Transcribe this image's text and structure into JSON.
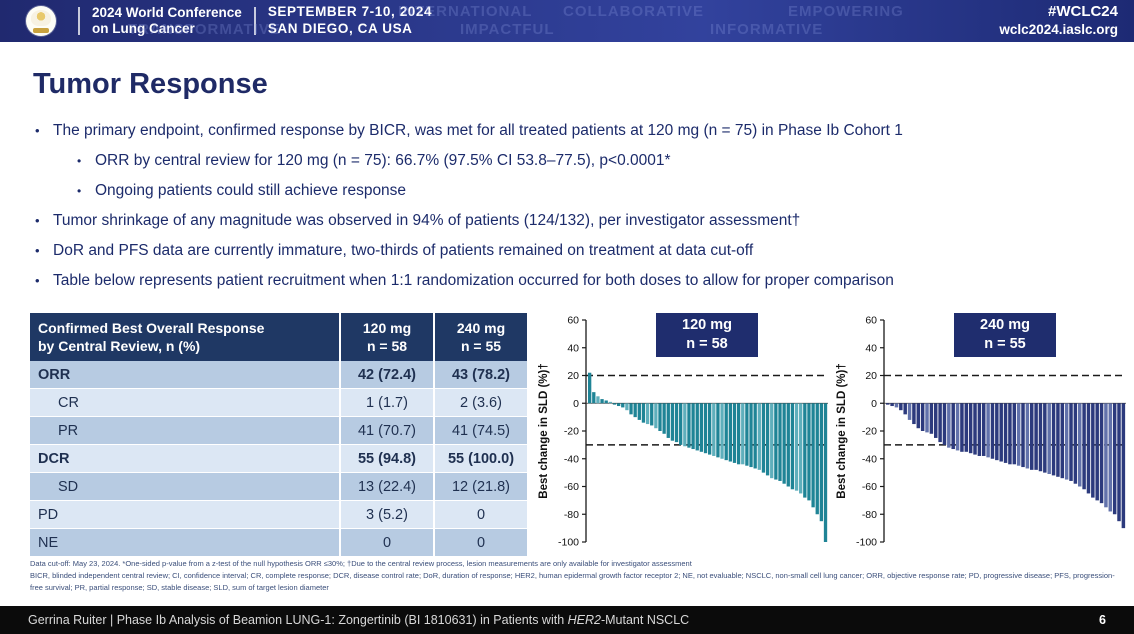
{
  "header": {
    "conference_name_line1": "2024 World Conference",
    "conference_name_line2": "on Lung Cancer",
    "date_line1": "SEPTEMBER 7-10, 2024",
    "date_line2": "SAN DIEGO, CA USA",
    "hashtag": "#WCLC24",
    "website": "wclc2024.iaslc.org",
    "watermarks": [
      "INTERNATIONAL",
      "COLLABORATIVE",
      "EMPOWERING",
      "TRANSFORMATIVE",
      "IMPACTFUL",
      "INFORMATIVE"
    ]
  },
  "title": "Tumor Response",
  "bullets": [
    {
      "level": 0,
      "text": "The primary endpoint, confirmed response by BICR, was met for all treated patients at 120 mg (n = 75) in Phase Ib Cohort 1"
    },
    {
      "level": 1,
      "text": "ORR by central review for 120 mg (n = 75): 66.7% (97.5% CI 53.8–77.5), p<0.0001*"
    },
    {
      "level": 1,
      "text": "Ongoing patients could still achieve response"
    },
    {
      "level": 0,
      "text": "Tumor shrinkage of any magnitude was observed in 94% of patients (124/132), per investigator assessment†"
    },
    {
      "level": 0,
      "text": "DoR and PFS data are currently immature, two-thirds of patients remained on treatment at data cut-off"
    },
    {
      "level": 0,
      "text": "Table below represents patient recruitment when 1:1 randomization occurred for both doses to allow for proper comparison"
    }
  ],
  "table": {
    "header_col1_line1": "Confirmed Best Overall Response",
    "header_col1_line2": "by Central Review, n (%)",
    "header_col2_line1": "120 mg",
    "header_col2_line2": "n = 58",
    "header_col3_line1": "240 mg",
    "header_col3_line2": "n = 55",
    "rows": [
      {
        "label": "ORR",
        "bold": true,
        "indent": false,
        "v120": "42 (72.4)",
        "v240": "43 (78.2)"
      },
      {
        "label": "CR",
        "bold": false,
        "indent": true,
        "v120": "1 (1.7)",
        "v240": "2 (3.6)"
      },
      {
        "label": "PR",
        "bold": false,
        "indent": true,
        "v120": "41 (70.7)",
        "v240": "41 (74.5)"
      },
      {
        "label": "DCR",
        "bold": true,
        "indent": false,
        "v120": "55 (94.8)",
        "v240": "55 (100.0)"
      },
      {
        "label": "SD",
        "bold": false,
        "indent": true,
        "v120": "13 (22.4)",
        "v240": "12 (21.8)"
      },
      {
        "label": "PD",
        "bold": false,
        "indent": false,
        "v120": "3 (5.2)",
        "v240": "0"
      },
      {
        "label": "NE",
        "bold": false,
        "indent": false,
        "v120": "0",
        "v240": "0"
      }
    ]
  },
  "chart_data": [
    {
      "type": "bar",
      "title": "120 mg",
      "subtitle": "n = 58",
      "ylabel": "Best change in SLD (%)†",
      "xlabel": "",
      "ylim": [
        -100,
        60
      ],
      "yticks": [
        60,
        40,
        20,
        0,
        -20,
        -40,
        -60,
        -80,
        -100
      ],
      "reference_lines": [
        20,
        -30
      ],
      "grid": false,
      "bar_color": "#1f8496",
      "bar_color_light": "#5fafbc",
      "values": [
        22,
        8,
        5,
        3,
        2,
        1,
        -1,
        -2,
        -3,
        -5,
        -8,
        -10,
        -12,
        -14,
        -15,
        -16,
        -18,
        -20,
        -22,
        -25,
        -27,
        -28,
        -30,
        -31,
        -32,
        -33,
        -34,
        -35,
        -36,
        -37,
        -38,
        -39,
        -40,
        -41,
        -42,
        -43,
        -44,
        -44,
        -45,
        -46,
        -47,
        -48,
        -50,
        -52,
        -54,
        -55,
        -56,
        -58,
        -60,
        -62,
        -63,
        -65,
        -68,
        -70,
        -75,
        -80,
        -85,
        -100
      ]
    },
    {
      "type": "bar",
      "title": "240 mg",
      "subtitle": "n = 55",
      "ylabel": "Best change in SLD (%)†",
      "xlabel": "",
      "ylim": [
        -100,
        60
      ],
      "yticks": [
        60,
        40,
        20,
        0,
        -20,
        -40,
        -60,
        -80,
        -100
      ],
      "reference_lines": [
        20,
        -30
      ],
      "grid": false,
      "bar_color": "#2c3a7d",
      "bar_color_light": "#6272ab",
      "values": [
        -1,
        -2,
        -3,
        -5,
        -8,
        -12,
        -15,
        -18,
        -20,
        -21,
        -22,
        -25,
        -28,
        -30,
        -32,
        -33,
        -34,
        -35,
        -35,
        -36,
        -37,
        -38,
        -38,
        -39,
        -40,
        -41,
        -42,
        -43,
        -44,
        -44,
        -45,
        -46,
        -47,
        -48,
        -48,
        -49,
        -50,
        -51,
        -52,
        -53,
        -54,
        -55,
        -56,
        -58,
        -60,
        -62,
        -65,
        -68,
        -70,
        -72,
        -75,
        -78,
        -80,
        -85,
        -90
      ]
    }
  ],
  "footnotes": {
    "line1": "Data cut-off: May 23, 2024. *One-sided p-value from a z-test of the null hypothesis ORR ≤30%; †Due to the central review process, lesion measurements are only available for investigator assessment",
    "abbreviations": "BICR, blinded independent central review; CI, confidence interval; CR, complete response; DCR, disease control rate; DoR, duration of response; HER2, human epidermal growth factor receptor 2; NE, not evaluable; NSCLC, non-small cell lung cancer; ORR, objective response rate; PD, progressive disease; PFS, progression-free survival; PR, partial response; SD, stable disease; SLD, sum of target lesion diameter"
  },
  "footer": {
    "citation_prefix": "Gerrina Ruiter | Phase Ib Analysis of Beamion LUNG-1: Zongertinib (BI 1810631) in Patients with ",
    "citation_italic": "HER2",
    "citation_suffix": "-Mutant NSCLC",
    "page_number": "6"
  },
  "colors": {
    "header_navy": "#232d7d",
    "title_navy": "#1f2a66",
    "table_header_bg": "#1f3864",
    "row_dark": "#b7cbe2",
    "row_light": "#dce7f4",
    "teal_bar": "#1f8496",
    "navy_bar": "#2c3a7d",
    "footer_bg": "#0b0b0b"
  }
}
